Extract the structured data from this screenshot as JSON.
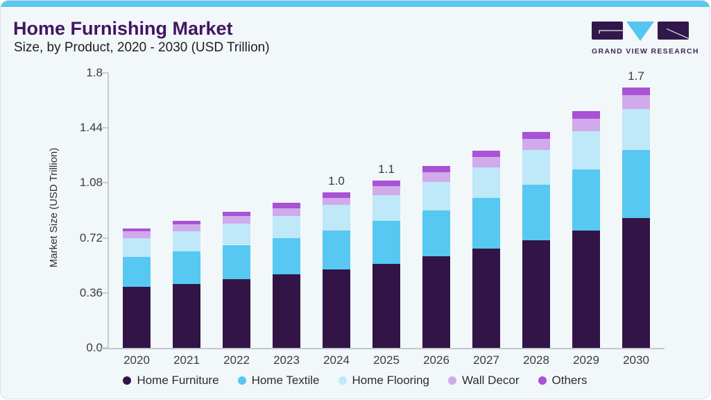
{
  "header": {
    "title": "Home Furnishing Market",
    "subtitle": "Size, by Product, 2020 - 2030 (USD Trillion)"
  },
  "logo": {
    "text": "GRAND VIEW RESEARCH"
  },
  "theme": {
    "accent_bar_color": "#5bc7ee",
    "title_color": "#431461",
    "card_background": "#f2f7fa",
    "logo_purple": "#32184a",
    "logo_blue": "#55c6ef"
  },
  "chart_data": {
    "type": "bar",
    "stacked": true,
    "title": "Home Furnishing Market Size, by Product, 2020 - 2030 (USD Trillion)",
    "categories": [
      "2020",
      "2021",
      "2022",
      "2023",
      "2024",
      "2025",
      "2026",
      "2027",
      "2028",
      "2029",
      "2030"
    ],
    "series": [
      {
        "name": "Home Furniture",
        "color": "#321546",
        "values": [
          0.4,
          0.42,
          0.45,
          0.48,
          0.515,
          0.55,
          0.6,
          0.65,
          0.705,
          0.77,
          0.85
        ]
      },
      {
        "name": "Home Textile",
        "color": "#56c8f2",
        "values": [
          0.195,
          0.21,
          0.225,
          0.24,
          0.255,
          0.28,
          0.3,
          0.33,
          0.365,
          0.4,
          0.445
        ]
      },
      {
        "name": "Home Flooring",
        "color": "#bfe8f9",
        "values": [
          0.125,
          0.135,
          0.14,
          0.145,
          0.165,
          0.17,
          0.185,
          0.2,
          0.225,
          0.25,
          0.27
        ]
      },
      {
        "name": "Wall Decor",
        "color": "#d1aaeb",
        "values": [
          0.042,
          0.043,
          0.048,
          0.05,
          0.049,
          0.057,
          0.065,
          0.068,
          0.075,
          0.08,
          0.09
        ]
      },
      {
        "name": "Others",
        "color": "#a852d6",
        "values": [
          0.018,
          0.022,
          0.027,
          0.035,
          0.033,
          0.038,
          0.04,
          0.045,
          0.045,
          0.05,
          0.05
        ]
      }
    ],
    "totals": [
      0.78,
      0.83,
      0.89,
      0.95,
      1.0,
      1.1,
      1.19,
      1.29,
      1.42,
      1.55,
      1.7
    ],
    "bar_labels": {
      "2024": "1.0",
      "2025": "1.1",
      "2030": "1.7"
    },
    "xlabel": "",
    "ylabel": "Market Size (USD Trillion)",
    "yticks": [
      "0.0",
      "0.36",
      "0.72",
      "1.08",
      "1.44",
      "1.8"
    ],
    "ylim": [
      0,
      1.8
    ],
    "grid": false,
    "legend_position": "bottom"
  }
}
